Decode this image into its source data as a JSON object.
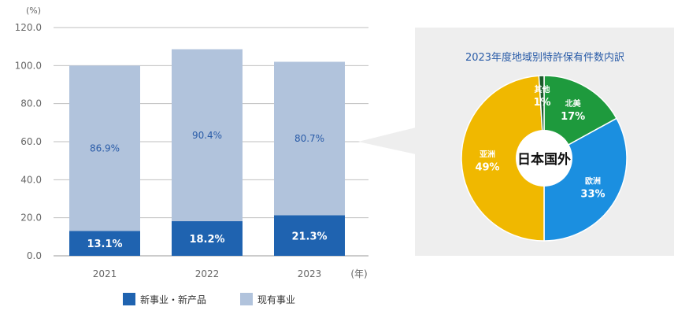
{
  "chart_data": [
    {
      "type": "bar",
      "stacked": true,
      "unit_label": "(%)",
      "x_unit_label": "(年)",
      "categories": [
        "2021",
        "2022",
        "2023"
      ],
      "series": [
        {
          "name": "新事业・新产品",
          "values": [
            13.1,
            18.2,
            21.3
          ],
          "color": "#1f63b0"
        },
        {
          "name": "现有事业",
          "values": [
            86.9,
            90.4,
            80.7
          ],
          "color": "#b1c3dc"
        }
      ],
      "ylim": [
        0,
        120
      ],
      "yticks": [
        "0.0",
        "20.0",
        "40.0",
        "60.0",
        "80.0",
        "100.0",
        "120.0"
      ],
      "grid": true,
      "legend": "bottom"
    },
    {
      "type": "pie",
      "title": "2023年度地域别特許保有件数内訳",
      "center_label": "日本国外",
      "slices": [
        {
          "name": "北美",
          "value": 17,
          "label": "17%",
          "color": "#1e9a3d"
        },
        {
          "name": "欧洲",
          "value": 33,
          "label": "33%",
          "color": "#1b8fe0"
        },
        {
          "name": "亚洲",
          "value": 49,
          "label": "49%",
          "color": "#f0b800"
        },
        {
          "name": "其他",
          "value": 1,
          "label": "1%",
          "color": "#1a5a2a"
        }
      ]
    }
  ],
  "colors": {
    "title": "#2a5ca8",
    "axis_text": "#666666",
    "grid": "#bfbfbf",
    "panel": "#eeeeee"
  }
}
